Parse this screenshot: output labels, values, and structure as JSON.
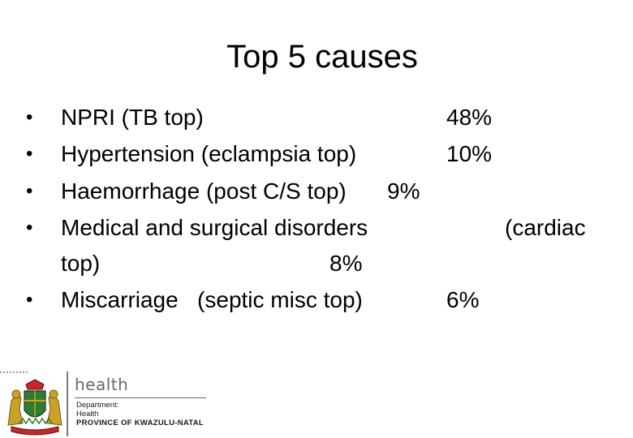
{
  "slide": {
    "title": "Top 5 causes"
  },
  "bullets": [
    {
      "text": "NPRI (TB top)",
      "value": "48%"
    },
    {
      "text": "Hypertension (eclampsia top)",
      "value": "10%"
    },
    {
      "text": "Haemorrhage (post C/S top)",
      "value": "9%"
    },
    {
      "text": "Medical and surgical disorders",
      "value": "(cardiac"
    },
    {
      "text": "top)",
      "value": "8%"
    },
    {
      "text": "Miscarriage   (septic misc top)",
      "value": "6%"
    }
  ],
  "bullet_glyph": "•",
  "footer": {
    "brand": "health",
    "department_line1": "Department:",
    "department_line2": "Health",
    "province": "PROVINCE OF KWAZULU-NATAL"
  },
  "colors": {
    "text": "#000000",
    "footer_grey": "#6a6a6a",
    "crest_green": "#2e7d32",
    "crest_red": "#c62828",
    "crest_gold": "#c9a227"
  }
}
